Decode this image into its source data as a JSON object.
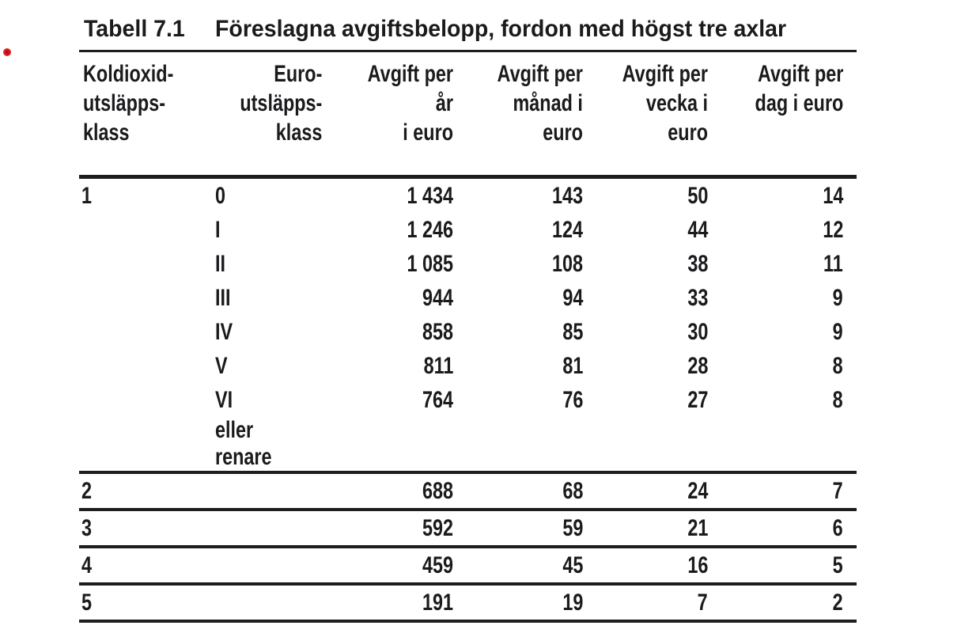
{
  "page": {
    "background": "#ffffff",
    "text_color": "#1b1b1e",
    "rule_color": "#1d1d1f",
    "bullet_color": "#dd161d"
  },
  "table": {
    "label": "Tabell 7.1",
    "title": "Föreslagna avgiftsbelopp, fordon med högst tre axlar",
    "columns": [
      {
        "id": "co2_class",
        "label": "Koldioxid-\nutsläpps-\nklass",
        "align": "left"
      },
      {
        "id": "euro_class",
        "label": "Euro-\nutsläpps-\nklass",
        "align": "right"
      },
      {
        "id": "per_year",
        "label": "Avgift per år\ni euro",
        "align": "right"
      },
      {
        "id": "per_month",
        "label": "Avgift per\nmånad i\neuro",
        "align": "right"
      },
      {
        "id": "per_week",
        "label": "Avgift per\nvecka i euro",
        "align": "right"
      },
      {
        "id": "per_day",
        "label": "Avgift per\ndag i euro",
        "align": "right"
      }
    ],
    "rows": [
      {
        "co2": "1",
        "euro": "0",
        "year": "1 434",
        "month": "143",
        "week": "50",
        "day": "14"
      },
      {
        "co2": "",
        "euro": "I",
        "year": "1 246",
        "month": "124",
        "week": "44",
        "day": "12"
      },
      {
        "co2": "",
        "euro": "II",
        "year": "1 085",
        "month": "108",
        "week": "38",
        "day": "11"
      },
      {
        "co2": "",
        "euro": "III",
        "year": "944",
        "month": "94",
        "week": "33",
        "day": "9"
      },
      {
        "co2": "",
        "euro": "IV",
        "year": "858",
        "month": "85",
        "week": "30",
        "day": "9"
      },
      {
        "co2": "",
        "euro": "V",
        "year": "811",
        "month": "81",
        "week": "28",
        "day": "8"
      },
      {
        "co2": "",
        "euro": "VI",
        "year": "764",
        "month": "76",
        "week": "27",
        "day": "8"
      },
      {
        "co2": "",
        "euro": "eller renare",
        "year": "",
        "month": "",
        "week": "",
        "day": ""
      },
      {
        "co2": "2",
        "euro": "",
        "year": "688",
        "month": "68",
        "week": "24",
        "day": "7"
      },
      {
        "co2": "3",
        "euro": "",
        "year": "592",
        "month": "59",
        "week": "21",
        "day": "6"
      },
      {
        "co2": "4",
        "euro": "",
        "year": "459",
        "month": "45",
        "week": "16",
        "day": "5"
      },
      {
        "co2": "5",
        "euro": "",
        "year": "191",
        "month": "19",
        "week": "7",
        "day": "2"
      }
    ]
  }
}
